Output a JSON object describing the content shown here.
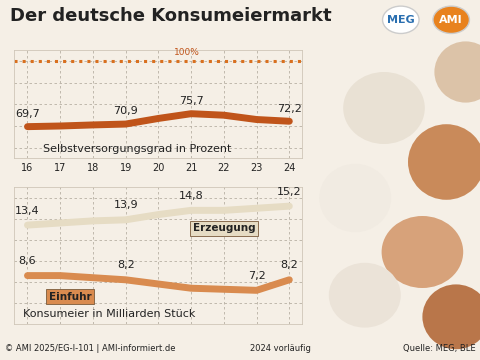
{
  "header": {
    "title": "Der deutsche Konsumeiermarkt",
    "logos": [
      "MEG",
      "AMI"
    ]
  },
  "chart_data": [
    {
      "type": "line",
      "title": "Selbstversorgungsgrad in Prozent",
      "x": [
        16,
        17,
        18,
        19,
        20,
        21,
        22,
        23,
        24
      ],
      "xlim": [
        15.6,
        24.4
      ],
      "xticks": [
        16,
        17,
        18,
        19,
        20,
        21,
        22,
        23,
        24
      ],
      "ylim": [
        55,
        105
      ],
      "yticks": [
        60,
        70,
        80,
        90,
        100
      ],
      "grid": true,
      "tick_labels": "x",
      "data_labels": true,
      "target": {
        "value": 100,
        "label": "100%",
        "color": "#d9701f",
        "line_style": "dotted"
      },
      "series": [
        {
          "name": null,
          "color": "#c0541a",
          "values": [
            69.7,
            70.0,
            70.5,
            70.9,
            73.5,
            75.7,
            75.0,
            73.0,
            72.2
          ],
          "value_labels": [
            "69,7",
            null,
            null,
            "70,9",
            null,
            "75,7",
            null,
            null,
            "72,2"
          ]
        }
      ]
    },
    {
      "type": "line",
      "title": "Konsumeier in Milliarden Stück",
      "x": [
        16,
        17,
        18,
        19,
        20,
        21,
        22,
        23,
        24
      ],
      "xlim": [
        15.6,
        24.4
      ],
      "xticks": [
        16,
        17,
        18,
        19,
        20,
        21,
        22,
        23,
        24
      ],
      "ylim": [
        4,
        17
      ],
      "yticks": [
        4,
        6,
        8,
        10,
        12,
        14,
        16
      ],
      "grid": true,
      "tick_labels": false,
      "data_labels": true,
      "series": [
        {
          "name": "Erzeugung",
          "color": "#e6dcc4",
          "values": [
            13.4,
            13.6,
            13.8,
            13.9,
            14.4,
            14.8,
            14.8,
            15.0,
            15.2
          ],
          "value_labels": [
            "13,4",
            null,
            null,
            "13,9",
            null,
            "14,8",
            null,
            null,
            "15,2"
          ]
        },
        {
          "name": "Einfuhr",
          "color": "#d98b4f",
          "values": [
            8.6,
            8.6,
            8.4,
            8.2,
            7.8,
            7.4,
            7.3,
            7.2,
            8.2
          ],
          "value_labels": [
            "8,6",
            null,
            null,
            "8,2",
            null,
            null,
            null,
            "7,2",
            "8,2"
          ]
        }
      ]
    }
  ],
  "footer": {
    "copyright": "© AMI 2025/EG-I-101 | AMI-informiert.de",
    "note": "2024 vorläufig",
    "source": "Quelle: MEG, BLE"
  }
}
